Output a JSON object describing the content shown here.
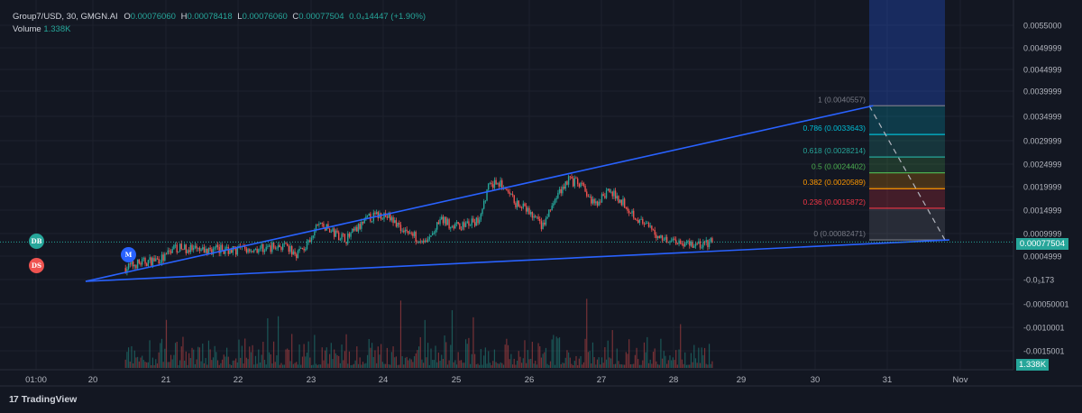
{
  "header": {
    "symbol": "Group7/USD, 30, GMGN.AI",
    "open_label": "O",
    "open": "0.00076060",
    "high_label": "H",
    "high": "0.00078418",
    "low_label": "L",
    "low": "0.00076060",
    "close_label": "C",
    "close": "0.00077504",
    "change": "0.0₄14447 (+1.90%)",
    "volume_label": "Volume",
    "volume": "1.338K"
  },
  "price_tag": "0.00077504",
  "volume_tag": "1.338K",
  "logo_text": "TradingView",
  "logo_mark": "17",
  "markers": {
    "db": "DB",
    "ds": "DS",
    "m": "M"
  },
  "colors": {
    "background": "#131722",
    "up": "#26a69a",
    "down": "#ef5350",
    "trendline": "#2962ff",
    "grid": "#1e222d",
    "text": "#b2b5be"
  },
  "chart_data": {
    "type": "candlestick",
    "x_ticks": [
      "01:00",
      "20",
      "21",
      "22",
      "23",
      "24",
      "25",
      "26",
      "27",
      "28",
      "29",
      "30",
      "31",
      "Nov"
    ],
    "y_ticks": [
      "0.0055000",
      "0.0049999",
      "0.0044999",
      "0.0039999",
      "0.0034999",
      "0.0029999",
      "0.0024999",
      "0.0019999",
      "0.0014999",
      "0.0009999",
      "0.0004999",
      "-0.0₃173",
      "-0.00050001",
      "-0.0010001",
      "-0.0015001"
    ],
    "last_close": 0.00077504,
    "price_path": [
      [
        "20.45",
        0.00015
      ],
      [
        "20.6",
        0.00025
      ],
      [
        "20.8",
        0.00032
      ],
      [
        "21.0",
        0.0004
      ],
      [
        "21.1",
        0.00065
      ],
      [
        "21.3",
        0.0006
      ],
      [
        "21.5",
        0.00055
      ],
      [
        "21.7",
        0.0006
      ],
      [
        "22.0",
        0.00058
      ],
      [
        "22.3",
        0.00062
      ],
      [
        "22.6",
        0.00068
      ],
      [
        "22.8",
        0.0005
      ],
      [
        "23.0",
        0.00075
      ],
      [
        "23.1",
        0.00125
      ],
      [
        "23.3",
        0.001
      ],
      [
        "23.5",
        0.00085
      ],
      [
        "23.8",
        0.00135
      ],
      [
        "24.0",
        0.00145
      ],
      [
        "24.2",
        0.0012
      ],
      [
        "24.4",
        0.00095
      ],
      [
        "24.6",
        0.00075
      ],
      [
        "24.8",
        0.0013
      ],
      [
        "25.0",
        0.00115
      ],
      [
        "25.3",
        0.00125
      ],
      [
        "25.45",
        0.0021
      ],
      [
        "25.6",
        0.0022
      ],
      [
        "25.8",
        0.00175
      ],
      [
        "26.0",
        0.0015
      ],
      [
        "26.2",
        0.00115
      ],
      [
        "26.4",
        0.0019
      ],
      [
        "26.55",
        0.0023
      ],
      [
        "26.75",
        0.0021
      ],
      [
        "26.9",
        0.00165
      ],
      [
        "27.1",
        0.002
      ],
      [
        "27.3",
        0.00175
      ],
      [
        "27.55",
        0.00125
      ],
      [
        "27.8",
        0.0009
      ],
      [
        "28.0",
        0.00082
      ],
      [
        "28.2",
        0.00075
      ],
      [
        "28.35",
        0.0007
      ],
      [
        "28.55",
        0.00077504
      ]
    ],
    "trendlines": [
      {
        "from": [
          "19.9",
          -0.000173
        ],
        "to": [
          "30.75",
          0.0040557
        ]
      },
      {
        "from": [
          "19.9",
          -0.000173
        ],
        "to": [
          "31.8",
          0.00082471
        ]
      }
    ],
    "fibonacci": {
      "levels": [
        {
          "ratio": "1",
          "value": "0.0040557",
          "price": 0.0040557,
          "color": "#787b86"
        },
        {
          "ratio": "0.786",
          "value": "0.0033643",
          "price": 0.0033643,
          "color": "#00bcd4"
        },
        {
          "ratio": "0.618",
          "value": "0.0028214",
          "price": 0.0028214,
          "color": "#26a69a"
        },
        {
          "ratio": "0.5",
          "value": "0.0024402",
          "price": 0.0024402,
          "color": "#4caf50"
        },
        {
          "ratio": "0.382",
          "value": "0.0020589",
          "price": 0.0020589,
          "color": "#ff9800"
        },
        {
          "ratio": "0.236",
          "value": "0.0015872",
          "price": 0.0015872,
          "color": "#f23645"
        },
        {
          "ratio": "0",
          "value": "0.00082471",
          "price": 0.00082471,
          "color": "#787b86"
        }
      ]
    }
  }
}
